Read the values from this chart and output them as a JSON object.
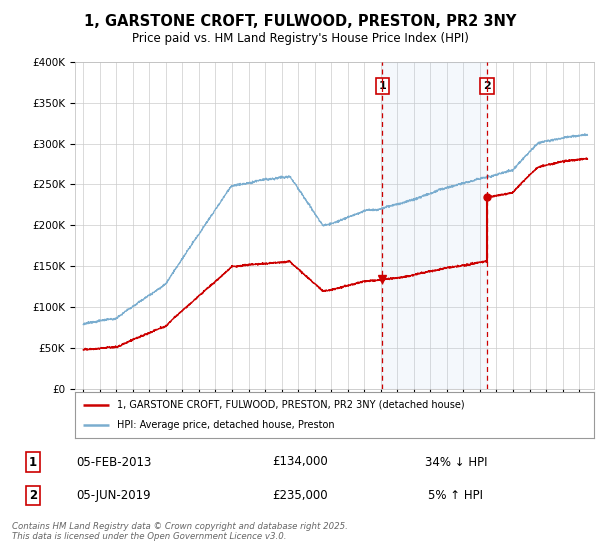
{
  "title": "1, GARSTONE CROFT, FULWOOD, PRESTON, PR2 3NY",
  "subtitle": "Price paid vs. HM Land Registry's House Price Index (HPI)",
  "ylim": [
    0,
    400000
  ],
  "sale1_year": 2013.09,
  "sale1_price": 134000,
  "sale1_label": "1",
  "sale1_date": "05-FEB-2013",
  "sale1_pct": "34% ↓ HPI",
  "sale2_year": 2019.42,
  "sale2_price": 235000,
  "sale2_label": "2",
  "sale2_date": "05-JUN-2019",
  "sale2_pct": "5% ↑ HPI",
  "red_line_color": "#cc0000",
  "blue_line_color": "#7aadcf",
  "vline_color": "#cc0000",
  "legend_label_red": "1, GARSTONE CROFT, FULWOOD, PRESTON, PR2 3NY (detached house)",
  "legend_label_blue": "HPI: Average price, detached house, Preston",
  "footnote": "Contains HM Land Registry data © Crown copyright and database right 2025.\nThis data is licensed under the Open Government Licence v3.0.",
  "plot_bg_color": "#ffffff"
}
